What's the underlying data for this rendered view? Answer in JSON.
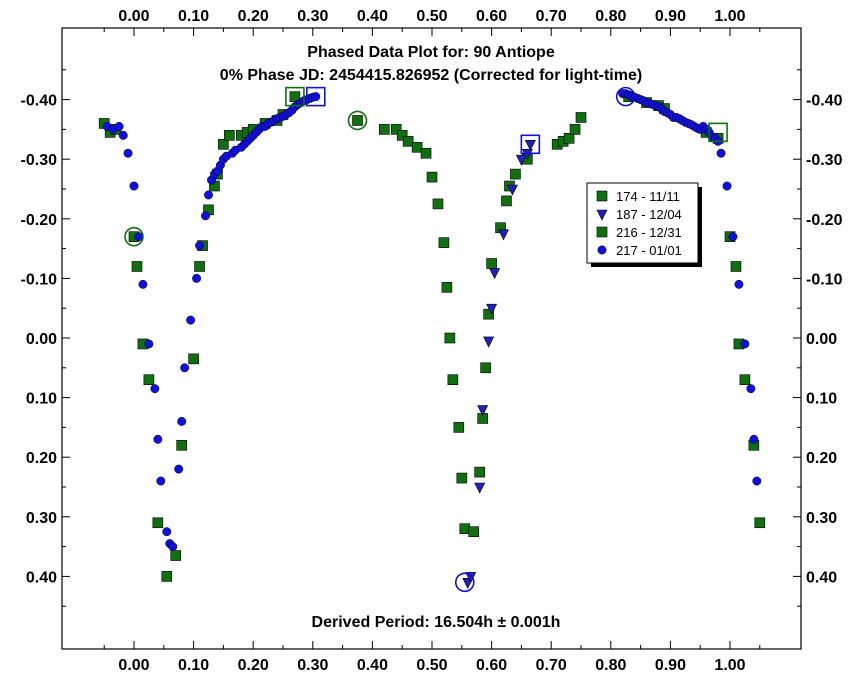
{
  "chart_data": {
    "type": "scatter",
    "title": "Phased Data Plot for: 90 Antiope",
    "subtitle": "0% Phase JD:  2454415.826952   (Corrected for light-time)",
    "footer": "Derived Period: 16.504h ± 0.001h",
    "xlim": [
      -0.12,
      1.13
    ],
    "ylim": [
      -0.53,
      0.53
    ],
    "y_inverted": true,
    "x_ticks": [
      "0.00",
      "0.10",
      "0.20",
      "0.30",
      "0.40",
      "0.50",
      "0.60",
      "0.70",
      "0.80",
      "0.90",
      "1.00"
    ],
    "x_tick_values": [
      0,
      0.1,
      0.2,
      0.3,
      0.4,
      0.5,
      0.6,
      0.7,
      0.8,
      0.9,
      1.0
    ],
    "y_ticks": [
      "-0.40",
      "-0.30",
      "-0.20",
      "-0.10",
      "0.00",
      "0.10",
      "0.20",
      "0.30",
      "0.40"
    ],
    "y_tick_values": [
      -0.4,
      -0.3,
      -0.2,
      -0.1,
      0,
      0.1,
      0.2,
      0.3,
      0.4
    ],
    "legend_position": "right-middle",
    "series": [
      {
        "name": "174 - 11/11",
        "marker": "square",
        "color": "#107010",
        "points": [
          [
            -0.05,
            -0.36
          ],
          [
            -0.04,
            -0.345
          ],
          [
            -0.03,
            -0.35
          ],
          [
            0.0,
            -0.17
          ],
          [
            0.005,
            -0.12
          ],
          [
            0.015,
            0.01
          ],
          [
            0.025,
            0.07
          ],
          [
            0.04,
            0.31
          ],
          [
            0.055,
            0.4
          ],
          [
            0.07,
            0.365
          ],
          [
            0.08,
            0.18
          ],
          [
            0.1,
            0.035
          ],
          [
            0.11,
            -0.12
          ],
          [
            0.115,
            -0.155
          ],
          [
            0.125,
            -0.215
          ],
          [
            0.135,
            -0.255
          ],
          [
            0.14,
            -0.275
          ],
          [
            0.15,
            -0.325
          ],
          [
            0.16,
            -0.34
          ],
          [
            0.18,
            -0.34
          ],
          [
            0.19,
            -0.345
          ],
          [
            0.2,
            -0.35
          ],
          [
            0.22,
            -0.36
          ],
          [
            0.24,
            -0.365
          ],
          [
            0.25,
            -0.375
          ],
          [
            0.27,
            -0.405
          ],
          [
            0.44,
            -0.35
          ],
          [
            0.45,
            -0.34
          ],
          [
            0.46,
            -0.33
          ],
          [
            0.475,
            -0.32
          ],
          [
            0.49,
            -0.31
          ],
          [
            0.5,
            -0.27
          ],
          [
            0.51,
            -0.225
          ],
          [
            0.52,
            -0.16
          ],
          [
            0.525,
            -0.085
          ],
          [
            0.53,
            0.0
          ],
          [
            0.535,
            0.07
          ],
          [
            0.545,
            0.15
          ],
          [
            0.55,
            0.235
          ],
          [
            0.555,
            0.32
          ],
          [
            0.57,
            0.325
          ],
          [
            0.58,
            0.225
          ],
          [
            0.585,
            0.135
          ],
          [
            0.59,
            0.05
          ],
          [
            0.595,
            -0.04
          ],
          [
            0.6,
            -0.125
          ],
          [
            0.615,
            -0.185
          ],
          [
            0.625,
            -0.23
          ],
          [
            0.63,
            -0.255
          ],
          [
            0.64,
            -0.275
          ],
          [
            0.66,
            -0.3
          ],
          [
            0.71,
            -0.325
          ],
          [
            0.72,
            -0.33
          ],
          [
            0.73,
            -0.335
          ],
          [
            0.74,
            -0.35
          ],
          [
            0.75,
            -0.37
          ],
          [
            0.83,
            -0.405
          ],
          [
            0.86,
            -0.395
          ],
          [
            0.88,
            -0.39
          ],
          [
            0.89,
            -0.385
          ],
          [
            0.96,
            -0.345
          ],
          [
            0.98,
            -0.335
          ],
          [
            1.0,
            -0.17
          ],
          [
            1.01,
            -0.12
          ],
          [
            1.015,
            0.01
          ],
          [
            1.025,
            0.07
          ],
          [
            1.04,
            0.18
          ],
          [
            1.05,
            0.31
          ],
          [
            0.375,
            -0.365
          ]
        ]
      },
      {
        "name": "187 - 12/04",
        "marker": "triangle",
        "color": "#2020c0",
        "points": [
          [
            0.56,
            0.41
          ],
          [
            0.565,
            0.4
          ],
          [
            0.58,
            0.25
          ],
          [
            0.585,
            0.12
          ],
          [
            0.595,
            0.005
          ],
          [
            0.6,
            -0.05
          ],
          [
            0.605,
            -0.11
          ],
          [
            0.62,
            -0.175
          ],
          [
            0.635,
            -0.25
          ],
          [
            0.65,
            -0.3
          ],
          [
            0.66,
            -0.31
          ],
          [
            0.665,
            -0.325
          ]
        ]
      },
      {
        "name": "216 - 12/31",
        "marker": "square",
        "color": "#107010",
        "points": [
          [
            0.42,
            -0.35
          ]
        ]
      },
      {
        "name": "217 - 01/01",
        "marker": "circle",
        "color": "#1010e0",
        "points": [
          [
            -0.045,
            -0.355
          ],
          [
            -0.035,
            -0.35
          ],
          [
            -0.025,
            -0.355
          ],
          [
            -0.018,
            -0.34
          ],
          [
            -0.01,
            -0.31
          ],
          [
            0.0,
            -0.255
          ],
          [
            0.008,
            -0.17
          ],
          [
            0.015,
            -0.09
          ],
          [
            0.025,
            0.01
          ],
          [
            0.035,
            0.085
          ],
          [
            0.04,
            0.17
          ],
          [
            0.045,
            0.24
          ],
          [
            0.055,
            0.325
          ],
          [
            0.06,
            0.345
          ],
          [
            0.065,
            0.35
          ],
          [
            0.075,
            0.22
          ],
          [
            0.08,
            0.14
          ],
          [
            0.085,
            0.05
          ],
          [
            0.095,
            -0.03
          ],
          [
            0.105,
            -0.1
          ],
          [
            0.11,
            -0.155
          ],
          [
            0.12,
            -0.205
          ],
          [
            0.125,
            -0.24
          ],
          [
            0.13,
            -0.265
          ],
          [
            0.135,
            -0.275
          ],
          [
            0.14,
            -0.28
          ],
          [
            0.145,
            -0.29
          ],
          [
            0.15,
            -0.3
          ],
          [
            0.155,
            -0.305
          ],
          [
            0.165,
            -0.31
          ],
          [
            0.17,
            -0.315
          ],
          [
            0.18,
            -0.32
          ],
          [
            0.185,
            -0.325
          ],
          [
            0.19,
            -0.33
          ],
          [
            0.195,
            -0.335
          ],
          [
            0.2,
            -0.34
          ],
          [
            0.205,
            -0.345
          ],
          [
            0.21,
            -0.35
          ],
          [
            0.215,
            -0.355
          ],
          [
            0.22,
            -0.355
          ],
          [
            0.225,
            -0.36
          ],
          [
            0.23,
            -0.362
          ],
          [
            0.235,
            -0.365
          ],
          [
            0.24,
            -0.368
          ],
          [
            0.245,
            -0.37
          ],
          [
            0.25,
            -0.372
          ],
          [
            0.255,
            -0.375
          ],
          [
            0.26,
            -0.378
          ],
          [
            0.265,
            -0.382
          ],
          [
            0.27,
            -0.388
          ],
          [
            0.275,
            -0.392
          ],
          [
            0.28,
            -0.395
          ],
          [
            0.285,
            -0.398
          ],
          [
            0.29,
            -0.4
          ],
          [
            0.295,
            -0.402
          ],
          [
            0.3,
            -0.404
          ],
          [
            0.305,
            -0.405
          ],
          [
            0.82,
            -0.41
          ],
          [
            0.825,
            -0.41
          ],
          [
            0.83,
            -0.408
          ],
          [
            0.835,
            -0.405
          ],
          [
            0.84,
            -0.404
          ],
          [
            0.845,
            -0.402
          ],
          [
            0.85,
            -0.4
          ],
          [
            0.855,
            -0.398
          ],
          [
            0.86,
            -0.395
          ],
          [
            0.865,
            -0.393
          ],
          [
            0.87,
            -0.392
          ],
          [
            0.875,
            -0.39
          ],
          [
            0.88,
            -0.388
          ],
          [
            0.885,
            -0.385
          ],
          [
            0.89,
            -0.38
          ],
          [
            0.895,
            -0.378
          ],
          [
            0.9,
            -0.375
          ],
          [
            0.905,
            -0.37
          ],
          [
            0.91,
            -0.37
          ],
          [
            0.915,
            -0.368
          ],
          [
            0.92,
            -0.365
          ],
          [
            0.925,
            -0.362
          ],
          [
            0.93,
            -0.36
          ],
          [
            0.935,
            -0.358
          ],
          [
            0.94,
            -0.355
          ],
          [
            0.945,
            -0.352
          ],
          [
            0.95,
            -0.35
          ],
          [
            0.955,
            -0.355
          ],
          [
            0.96,
            -0.35
          ],
          [
            0.965,
            -0.345
          ],
          [
            0.97,
            -0.338
          ],
          [
            0.975,
            -0.335
          ],
          [
            0.98,
            -0.33
          ],
          [
            0.985,
            -0.31
          ],
          [
            0.995,
            -0.255
          ],
          [
            1.005,
            -0.17
          ],
          [
            1.015,
            -0.09
          ],
          [
            1.025,
            0.01
          ],
          [
            1.035,
            0.085
          ],
          [
            1.04,
            0.17
          ],
          [
            1.045,
            0.24
          ]
        ]
      }
    ],
    "highlighted": [
      {
        "shape": "circle",
        "color": "#107010",
        "x": 0.0,
        "y": -0.17
      },
      {
        "shape": "square",
        "color": "#107010",
        "x": 0.27,
        "y": -0.405
      },
      {
        "shape": "square",
        "color": "#1010e0",
        "x": 0.305,
        "y": -0.405
      },
      {
        "shape": "circle",
        "color": "#107010",
        "x": 0.375,
        "y": -0.365
      },
      {
        "shape": "circle",
        "color": "#1010e0",
        "x": 0.555,
        "y": 0.41
      },
      {
        "shape": "square",
        "color": "#1010e0",
        "x": 0.665,
        "y": -0.325
      },
      {
        "shape": "circle",
        "color": "#1010e0",
        "x": 0.825,
        "y": -0.405
      },
      {
        "shape": "square",
        "color": "#107010",
        "x": 0.98,
        "y": -0.345
      }
    ]
  }
}
